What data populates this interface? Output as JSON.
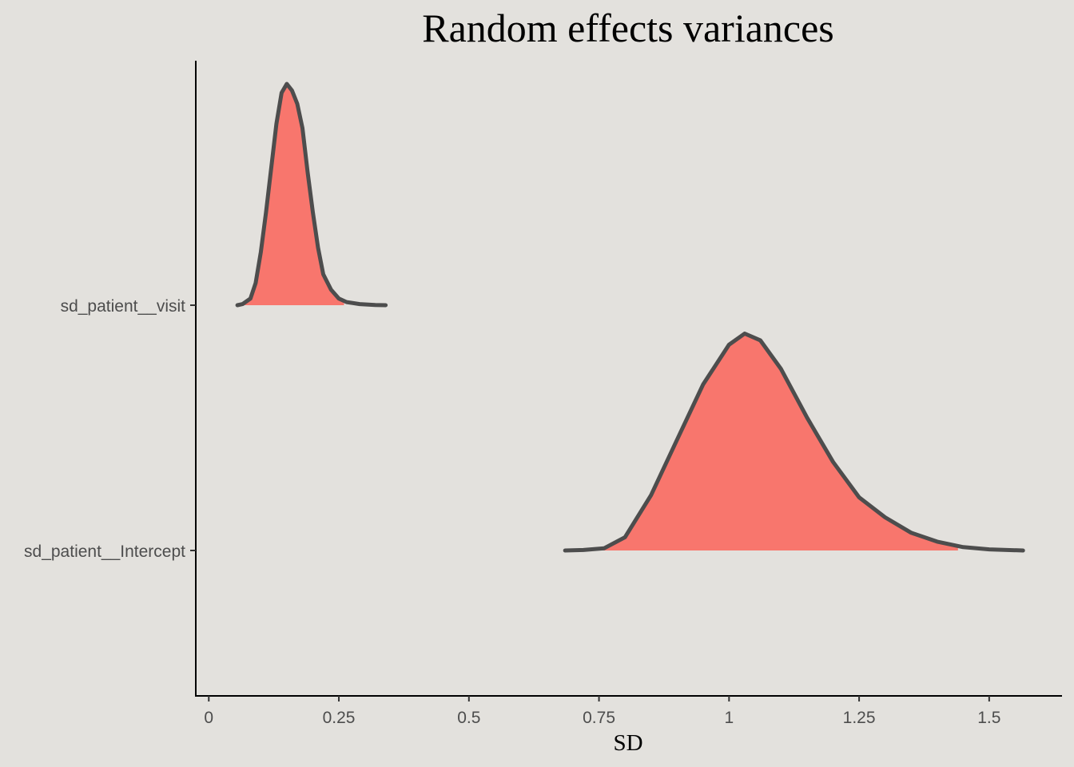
{
  "chart_data": {
    "type": "area",
    "title": "Random effects variances",
    "xlabel": "SD",
    "ylabel": "",
    "xlim": [
      -0.025,
      1.64
    ],
    "x_ticks": [
      {
        "value": 0,
        "label": "0"
      },
      {
        "value": 0.25,
        "label": "0.25"
      },
      {
        "value": 0.5,
        "label": "0.5"
      },
      {
        "value": 0.75,
        "label": "0.75"
      },
      {
        "value": 1,
        "label": "1"
      },
      {
        "value": 1.25,
        "label": "1.25"
      },
      {
        "value": 1.5,
        "label": "1.5"
      }
    ],
    "categories": [
      "sd_patient__visit",
      "sd_patient__Intercept"
    ],
    "fill_color": "#f8766d",
    "line_color": "#4d4d4d",
    "grid": false,
    "legend": "none",
    "series": [
      {
        "name": "sd_patient__visit",
        "fill_range": [
          0.065,
          0.26
        ],
        "density": [
          [
            0.055,
            0.0
          ],
          [
            0.065,
            0.005
          ],
          [
            0.08,
            0.03
          ],
          [
            0.09,
            0.1
          ],
          [
            0.1,
            0.24
          ],
          [
            0.11,
            0.42
          ],
          [
            0.12,
            0.62
          ],
          [
            0.13,
            0.82
          ],
          [
            0.14,
            0.96
          ],
          [
            0.15,
            1.0
          ],
          [
            0.16,
            0.97
          ],
          [
            0.17,
            0.91
          ],
          [
            0.18,
            0.8
          ],
          [
            0.19,
            0.6
          ],
          [
            0.2,
            0.42
          ],
          [
            0.21,
            0.26
          ],
          [
            0.22,
            0.14
          ],
          [
            0.235,
            0.07
          ],
          [
            0.25,
            0.03
          ],
          [
            0.265,
            0.014
          ],
          [
            0.29,
            0.005
          ],
          [
            0.32,
            0.001
          ],
          [
            0.34,
            0.0
          ]
        ]
      },
      {
        "name": "sd_patient__Intercept",
        "fill_range": [
          0.74,
          1.44
        ],
        "density": [
          [
            0.685,
            0.0
          ],
          [
            0.72,
            0.002
          ],
          [
            0.76,
            0.01
          ],
          [
            0.8,
            0.06
          ],
          [
            0.85,
            0.25
          ],
          [
            0.9,
            0.5
          ],
          [
            0.95,
            0.75
          ],
          [
            1.0,
            0.93
          ],
          [
            1.03,
            0.98
          ],
          [
            1.06,
            0.95
          ],
          [
            1.1,
            0.82
          ],
          [
            1.15,
            0.6
          ],
          [
            1.2,
            0.4
          ],
          [
            1.25,
            0.24
          ],
          [
            1.3,
            0.15
          ],
          [
            1.35,
            0.08
          ],
          [
            1.4,
            0.04
          ],
          [
            1.45,
            0.015
          ],
          [
            1.5,
            0.005
          ],
          [
            1.565,
            0.0
          ]
        ]
      }
    ]
  }
}
